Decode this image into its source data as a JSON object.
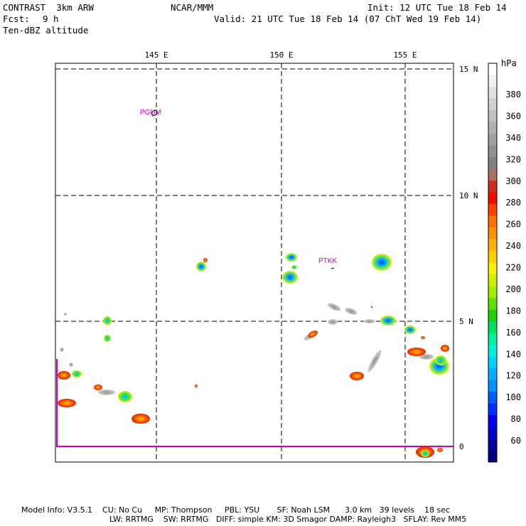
{
  "header": {
    "model": "CONTRAST  3km ARW",
    "org": "NCAR/MMM",
    "init": "Init: 12 UTC Tue 18 Feb 14",
    "fcst_label": "Fcst:",
    "fcst_value": "9 h",
    "valid": "Valid: 21 UTC Tue 18 Feb 14 (07 ChT Wed 19 Feb 14)",
    "field": "Ten-dBZ altitude"
  },
  "map": {
    "lon_ticks": [
      "145 E",
      "150 E",
      "155 E"
    ],
    "lat_ticks": [
      "15 N",
      "10 N",
      "5 N",
      "0"
    ],
    "stations": [
      "PGUM",
      "PTKK"
    ]
  },
  "colorbar": {
    "unit": "hPa",
    "labels": [
      "380",
      "360",
      "340",
      "320",
      "300",
      "280",
      "260",
      "240",
      "220",
      "200",
      "180",
      "160",
      "140",
      "120",
      "100",
      "80",
      "60"
    ],
    "colors": [
      "#ffffff",
      "#f0f0f0",
      "#e0e0e0",
      "#d0d0d0",
      "#c0c0c0",
      "#b0b0b0",
      "#a0a0a0",
      "#909090",
      "#808080",
      "#a87060",
      "#c83020",
      "#f01000",
      "#ff4000",
      "#ff7000",
      "#ff9000",
      "#ffb000",
      "#ffd000",
      "#f8f000",
      "#d0f000",
      "#a0f000",
      "#60e000",
      "#20d000",
      "#00e060",
      "#00f0a0",
      "#00f0e0",
      "#00d0ff",
      "#00b0ff",
      "#0090ff",
      "#0060ff",
      "#0030ff",
      "#0000f0",
      "#0000c8",
      "#0000a0",
      "#000080"
    ]
  },
  "footer": {
    "line1": "Model Info: V3.5.1    CU: No Cu     MP: Thompson     PBL: YSU       SF: Noah LSM      3.0 km   39 levels    18 sec",
    "line2": "LW: RRTMG    SW: RRTMG   DIFF: simple KM: 3D Smagor DAMP: Rayleigh3   SFLAY: Rev MM5"
  }
}
